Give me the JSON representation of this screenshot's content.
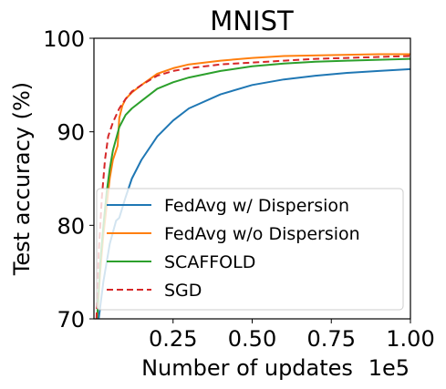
{
  "chart_data": {
    "type": "line",
    "title": "MNIST",
    "xlabel": "Number of updates",
    "ylabel": "Test accuracy (%)",
    "x_offset_label": "1e5",
    "xlim": [
      0,
      100000
    ],
    "ylim": [
      70,
      100
    ],
    "x_ticks": [
      25000,
      50000,
      75000,
      100000
    ],
    "x_tick_labels": [
      "0.25",
      "0.50",
      "0.75",
      "1.00"
    ],
    "y_ticks": [
      70,
      80,
      90,
      100
    ],
    "y_tick_labels": [
      "70",
      "80",
      "90",
      "100"
    ],
    "grid": false,
    "legend_position": "lower-right",
    "series": [
      {
        "name": "FedAvg w/ Dispersion",
        "color": "#1f77b4",
        "style": "solid",
        "x": [
          1500,
          3000,
          5000,
          7000,
          8000,
          10000,
          12000,
          15000,
          20000,
          25000,
          30000,
          40000,
          50000,
          60000,
          70000,
          80000,
          90000,
          100000
        ],
        "y": [
          70.0,
          74.0,
          78.0,
          80.5,
          80.8,
          83.0,
          85.0,
          87.0,
          89.5,
          91.2,
          92.5,
          94.0,
          95.0,
          95.6,
          96.0,
          96.3,
          96.5,
          96.7
        ]
      },
      {
        "name": "FedAvg w/o Dispersion",
        "color": "#ff7f0e",
        "style": "solid",
        "x": [
          1000,
          2000,
          3000,
          4000,
          5000,
          6000,
          7500,
          8000,
          9000,
          10000,
          12000,
          15000,
          20000,
          25000,
          30000,
          40000,
          50000,
          60000,
          75000,
          90000,
          100000
        ],
        "y": [
          70.0,
          75.0,
          79.0,
          82.0,
          85.0,
          87.0,
          88.5,
          91.5,
          92.8,
          93.5,
          94.2,
          95.0,
          96.2,
          96.8,
          97.2,
          97.6,
          97.9,
          98.1,
          98.2,
          98.3,
          98.3
        ]
      },
      {
        "name": "SCAFFOLD",
        "color": "#2ca02c",
        "style": "solid",
        "x": [
          1000,
          2000,
          3000,
          4000,
          5000,
          6000,
          8000,
          10000,
          12000,
          15000,
          20000,
          25000,
          30000,
          40000,
          50000,
          60000,
          70000,
          80000,
          90000,
          100000
        ],
        "y": [
          70.0,
          76.0,
          80.0,
          83.5,
          86.0,
          88.0,
          90.5,
          91.8,
          92.5,
          93.3,
          94.6,
          95.3,
          95.8,
          96.5,
          97.0,
          97.3,
          97.5,
          97.6,
          97.7,
          97.8
        ]
      },
      {
        "name": "SGD",
        "color": "#d62728",
        "style": "dashed",
        "x": [
          800,
          1500,
          2500,
          3500,
          4500,
          6000,
          8000,
          10000,
          12000,
          15000,
          20000,
          25000,
          30000,
          40000,
          50000,
          60000,
          70000,
          80000,
          90000,
          100000
        ],
        "y": [
          70.0,
          77.0,
          83.0,
          87.0,
          89.5,
          91.0,
          92.5,
          93.5,
          94.3,
          95.0,
          96.0,
          96.5,
          96.8,
          97.2,
          97.4,
          97.6,
          97.8,
          97.9,
          98.0,
          98.1
        ]
      }
    ]
  }
}
